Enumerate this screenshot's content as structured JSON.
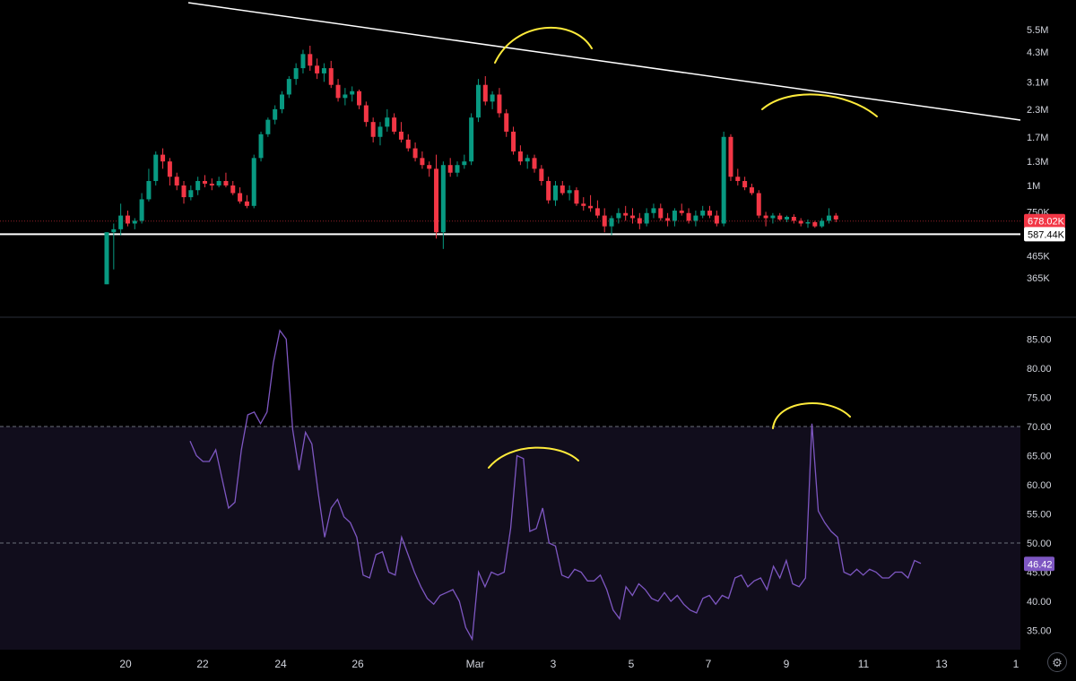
{
  "chart_data": [
    {
      "type": "candlestick",
      "scale": "log",
      "y_ticks": [
        "5.5M",
        "4.3M",
        "3.1M",
        "2.3M",
        "1.7M",
        "1.3M",
        "1M",
        "750K",
        "465K",
        "365K"
      ],
      "price_labels": {
        "last": "678.02K",
        "support": "587.44K"
      },
      "colors": {
        "up": "#089981",
        "down": "#f23645",
        "trendline": "#ffffff",
        "annotation": "#ffeb3b",
        "last_price": "#f23645"
      },
      "candles": [
        [
          0.34,
          0.6,
          0.34,
          0.6
        ],
        [
          0.6,
          0.66,
          0.4,
          0.62
        ],
        [
          0.62,
          0.82,
          0.58,
          0.72
        ],
        [
          0.72,
          0.76,
          0.64,
          0.66
        ],
        [
          0.66,
          0.7,
          0.62,
          0.68
        ],
        [
          0.68,
          0.92,
          0.66,
          0.86
        ],
        [
          0.86,
          1.2,
          0.84,
          1.05
        ],
        [
          1.05,
          1.45,
          1.0,
          1.4
        ],
        [
          1.4,
          1.5,
          1.2,
          1.3
        ],
        [
          1.3,
          1.35,
          1.0,
          1.1
        ],
        [
          1.1,
          1.15,
          0.95,
          1.0
        ],
        [
          1.0,
          1.05,
          0.82,
          0.88
        ],
        [
          0.88,
          1.0,
          0.85,
          0.95
        ],
        [
          0.95,
          1.1,
          0.9,
          1.05
        ],
        [
          1.05,
          1.12,
          0.98,
          1.02
        ],
        [
          1.02,
          1.08,
          0.95,
          1.0
        ],
        [
          1.0,
          1.1,
          0.98,
          1.05
        ],
        [
          1.05,
          1.15,
          0.98,
          1.0
        ],
        [
          1.0,
          1.05,
          0.9,
          0.92
        ],
        [
          0.92,
          0.98,
          0.82,
          0.84
        ],
        [
          0.84,
          0.9,
          0.78,
          0.8
        ],
        [
          0.8,
          1.4,
          0.78,
          1.35
        ],
        [
          1.35,
          1.8,
          1.3,
          1.75
        ],
        [
          1.75,
          2.1,
          1.7,
          2.05
        ],
        [
          2.05,
          2.4,
          1.95,
          2.3
        ],
        [
          2.3,
          2.8,
          2.2,
          2.7
        ],
        [
          2.7,
          3.3,
          2.6,
          3.2
        ],
        [
          3.2,
          3.8,
          3.0,
          3.6
        ],
        [
          3.6,
          4.4,
          3.4,
          4.2
        ],
        [
          4.2,
          4.6,
          3.5,
          3.7
        ],
        [
          3.7,
          4.0,
          3.2,
          3.4
        ],
        [
          3.4,
          3.8,
          3.1,
          3.6
        ],
        [
          3.6,
          3.9,
          2.9,
          3.0
        ],
        [
          3.0,
          3.2,
          2.5,
          2.6
        ],
        [
          2.6,
          2.9,
          2.4,
          2.7
        ],
        [
          2.7,
          2.95,
          2.5,
          2.8
        ],
        [
          2.8,
          2.85,
          2.3,
          2.4
        ],
        [
          2.4,
          2.5,
          1.9,
          2.0
        ],
        [
          2.0,
          2.1,
          1.6,
          1.7
        ],
        [
          1.7,
          2.0,
          1.55,
          1.9
        ],
        [
          1.9,
          2.3,
          1.8,
          2.1
        ],
        [
          2.1,
          2.2,
          1.75,
          1.8
        ],
        [
          1.8,
          2.0,
          1.6,
          1.65
        ],
        [
          1.65,
          1.75,
          1.45,
          1.5
        ],
        [
          1.5,
          1.6,
          1.3,
          1.35
        ],
        [
          1.35,
          1.45,
          1.2,
          1.25
        ],
        [
          1.25,
          1.3,
          1.1,
          1.2
        ],
        [
          1.2,
          1.4,
          0.56,
          0.6
        ],
        [
          0.6,
          1.3,
          0.5,
          1.25
        ],
        [
          1.25,
          1.35,
          1.1,
          1.15
        ],
        [
          1.15,
          1.3,
          1.1,
          1.25
        ],
        [
          1.25,
          1.4,
          1.2,
          1.3
        ],
        [
          1.3,
          2.2,
          1.25,
          2.1
        ],
        [
          2.1,
          3.2,
          2.0,
          3.0
        ],
        [
          3.0,
          3.3,
          2.4,
          2.5
        ],
        [
          2.5,
          2.8,
          2.3,
          2.7
        ],
        [
          2.7,
          2.9,
          2.1,
          2.2
        ],
        [
          2.2,
          2.3,
          1.7,
          1.8
        ],
        [
          1.8,
          1.9,
          1.4,
          1.45
        ],
        [
          1.45,
          1.55,
          1.25,
          1.3
        ],
        [
          1.3,
          1.4,
          1.2,
          1.35
        ],
        [
          1.35,
          1.4,
          1.15,
          1.2
        ],
        [
          1.2,
          1.25,
          1.0,
          1.05
        ],
        [
          1.05,
          1.1,
          0.82,
          0.85
        ],
        [
          0.85,
          1.05,
          0.8,
          1.0
        ],
        [
          1.0,
          1.05,
          0.9,
          0.92
        ],
        [
          0.92,
          1.0,
          0.85,
          0.95
        ],
        [
          0.95,
          0.98,
          0.8,
          0.82
        ],
        [
          0.82,
          0.88,
          0.76,
          0.8
        ],
        [
          0.8,
          0.9,
          0.75,
          0.78
        ],
        [
          0.78,
          0.85,
          0.7,
          0.72
        ],
        [
          0.72,
          0.78,
          0.6,
          0.64
        ],
        [
          0.64,
          0.72,
          0.58,
          0.7
        ],
        [
          0.7,
          0.78,
          0.66,
          0.74
        ],
        [
          0.74,
          0.8,
          0.68,
          0.72
        ],
        [
          0.72,
          0.78,
          0.66,
          0.7
        ],
        [
          0.7,
          0.74,
          0.62,
          0.66
        ],
        [
          0.66,
          0.78,
          0.64,
          0.74
        ],
        [
          0.74,
          0.82,
          0.7,
          0.78
        ],
        [
          0.78,
          0.82,
          0.68,
          0.7
        ],
        [
          0.7,
          0.74,
          0.64,
          0.68
        ],
        [
          0.68,
          0.78,
          0.64,
          0.76
        ],
        [
          0.76,
          0.82,
          0.72,
          0.74
        ],
        [
          0.74,
          0.78,
          0.66,
          0.68
        ],
        [
          0.68,
          0.76,
          0.64,
          0.72
        ],
        [
          0.72,
          0.8,
          0.7,
          0.76
        ],
        [
          0.76,
          0.8,
          0.7,
          0.72
        ],
        [
          0.72,
          0.76,
          0.64,
          0.66
        ],
        [
          0.66,
          1.8,
          0.64,
          1.7
        ],
        [
          1.7,
          1.75,
          1.05,
          1.1
        ],
        [
          1.1,
          1.2,
          1.0,
          1.05
        ],
        [
          1.05,
          1.1,
          0.95,
          0.98
        ],
        [
          0.98,
          1.02,
          0.9,
          0.92
        ],
        [
          0.92,
          0.95,
          0.7,
          0.72
        ],
        [
          0.72,
          0.75,
          0.64,
          0.7
        ],
        [
          0.7,
          0.74,
          0.66,
          0.72
        ],
        [
          0.72,
          0.74,
          0.68,
          0.69
        ],
        [
          0.69,
          0.72,
          0.67,
          0.71
        ],
        [
          0.71,
          0.73,
          0.66,
          0.68
        ],
        [
          0.68,
          0.7,
          0.64,
          0.66
        ],
        [
          0.66,
          0.69,
          0.63,
          0.67
        ],
        [
          0.67,
          0.68,
          0.63,
          0.64
        ],
        [
          0.64,
          0.7,
          0.63,
          0.68
        ],
        [
          0.68,
          0.78,
          0.66,
          0.72
        ],
        [
          0.72,
          0.74,
          0.67,
          0.69
        ]
      ]
    },
    {
      "type": "line",
      "y_ticks": [
        "85.00",
        "80.00",
        "75.00",
        "70.00",
        "65.00",
        "60.00",
        "55.00",
        "50.00",
        "45.00",
        "40.00",
        "35.00"
      ],
      "ylim": [
        32,
        88
      ],
      "levels": [
        70,
        50
      ],
      "price_labels": {
        "last": "46.42"
      },
      "colors": {
        "line": "#7e57c2",
        "band": "#110d1c",
        "annotation": "#ffeb3b",
        "last_price": "#7e57c2"
      },
      "values": [
        67.5,
        65,
        64,
        64,
        66,
        61,
        56,
        57,
        66,
        72,
        72.5,
        70.5,
        72.5,
        81,
        86.5,
        85,
        69.5,
        62.5,
        69,
        67,
        58.5,
        51,
        56,
        57.5,
        54.5,
        53.5,
        51,
        44.5,
        44,
        48,
        48.5,
        45,
        44.5,
        51,
        48,
        45,
        42.5,
        40.5,
        39.5,
        41,
        41.5,
        42,
        40,
        35.5,
        33.5,
        45,
        42.5,
        45,
        44.5,
        45,
        52.5,
        65,
        64.5,
        52,
        52.5,
        56,
        50,
        49.5,
        44.5,
        44,
        45.5,
        45,
        43.5,
        43.5,
        44.5,
        42,
        38.5,
        37,
        42.5,
        41,
        43,
        42,
        40.5,
        40,
        41.5,
        40,
        41,
        39.5,
        38.5,
        38,
        40.5,
        41,
        39.5,
        41,
        40.5,
        44,
        44.5,
        42.5,
        43.5,
        44,
        42,
        46,
        44,
        47,
        43,
        42.5,
        44,
        70.5,
        55.5,
        53.5,
        52,
        51,
        45,
        44.5,
        45.5,
        44.5,
        45.5,
        45,
        44,
        44,
        45,
        45,
        44,
        47,
        46.5
      ]
    }
  ],
  "time_axis": {
    "labels": [
      "20",
      "22",
      "24",
      "26",
      "Mar",
      "3",
      "5",
      "7",
      "9",
      "11",
      "13",
      "1"
    ]
  },
  "settings_icon": "gear-icon",
  "settings_glyph": "⚙"
}
